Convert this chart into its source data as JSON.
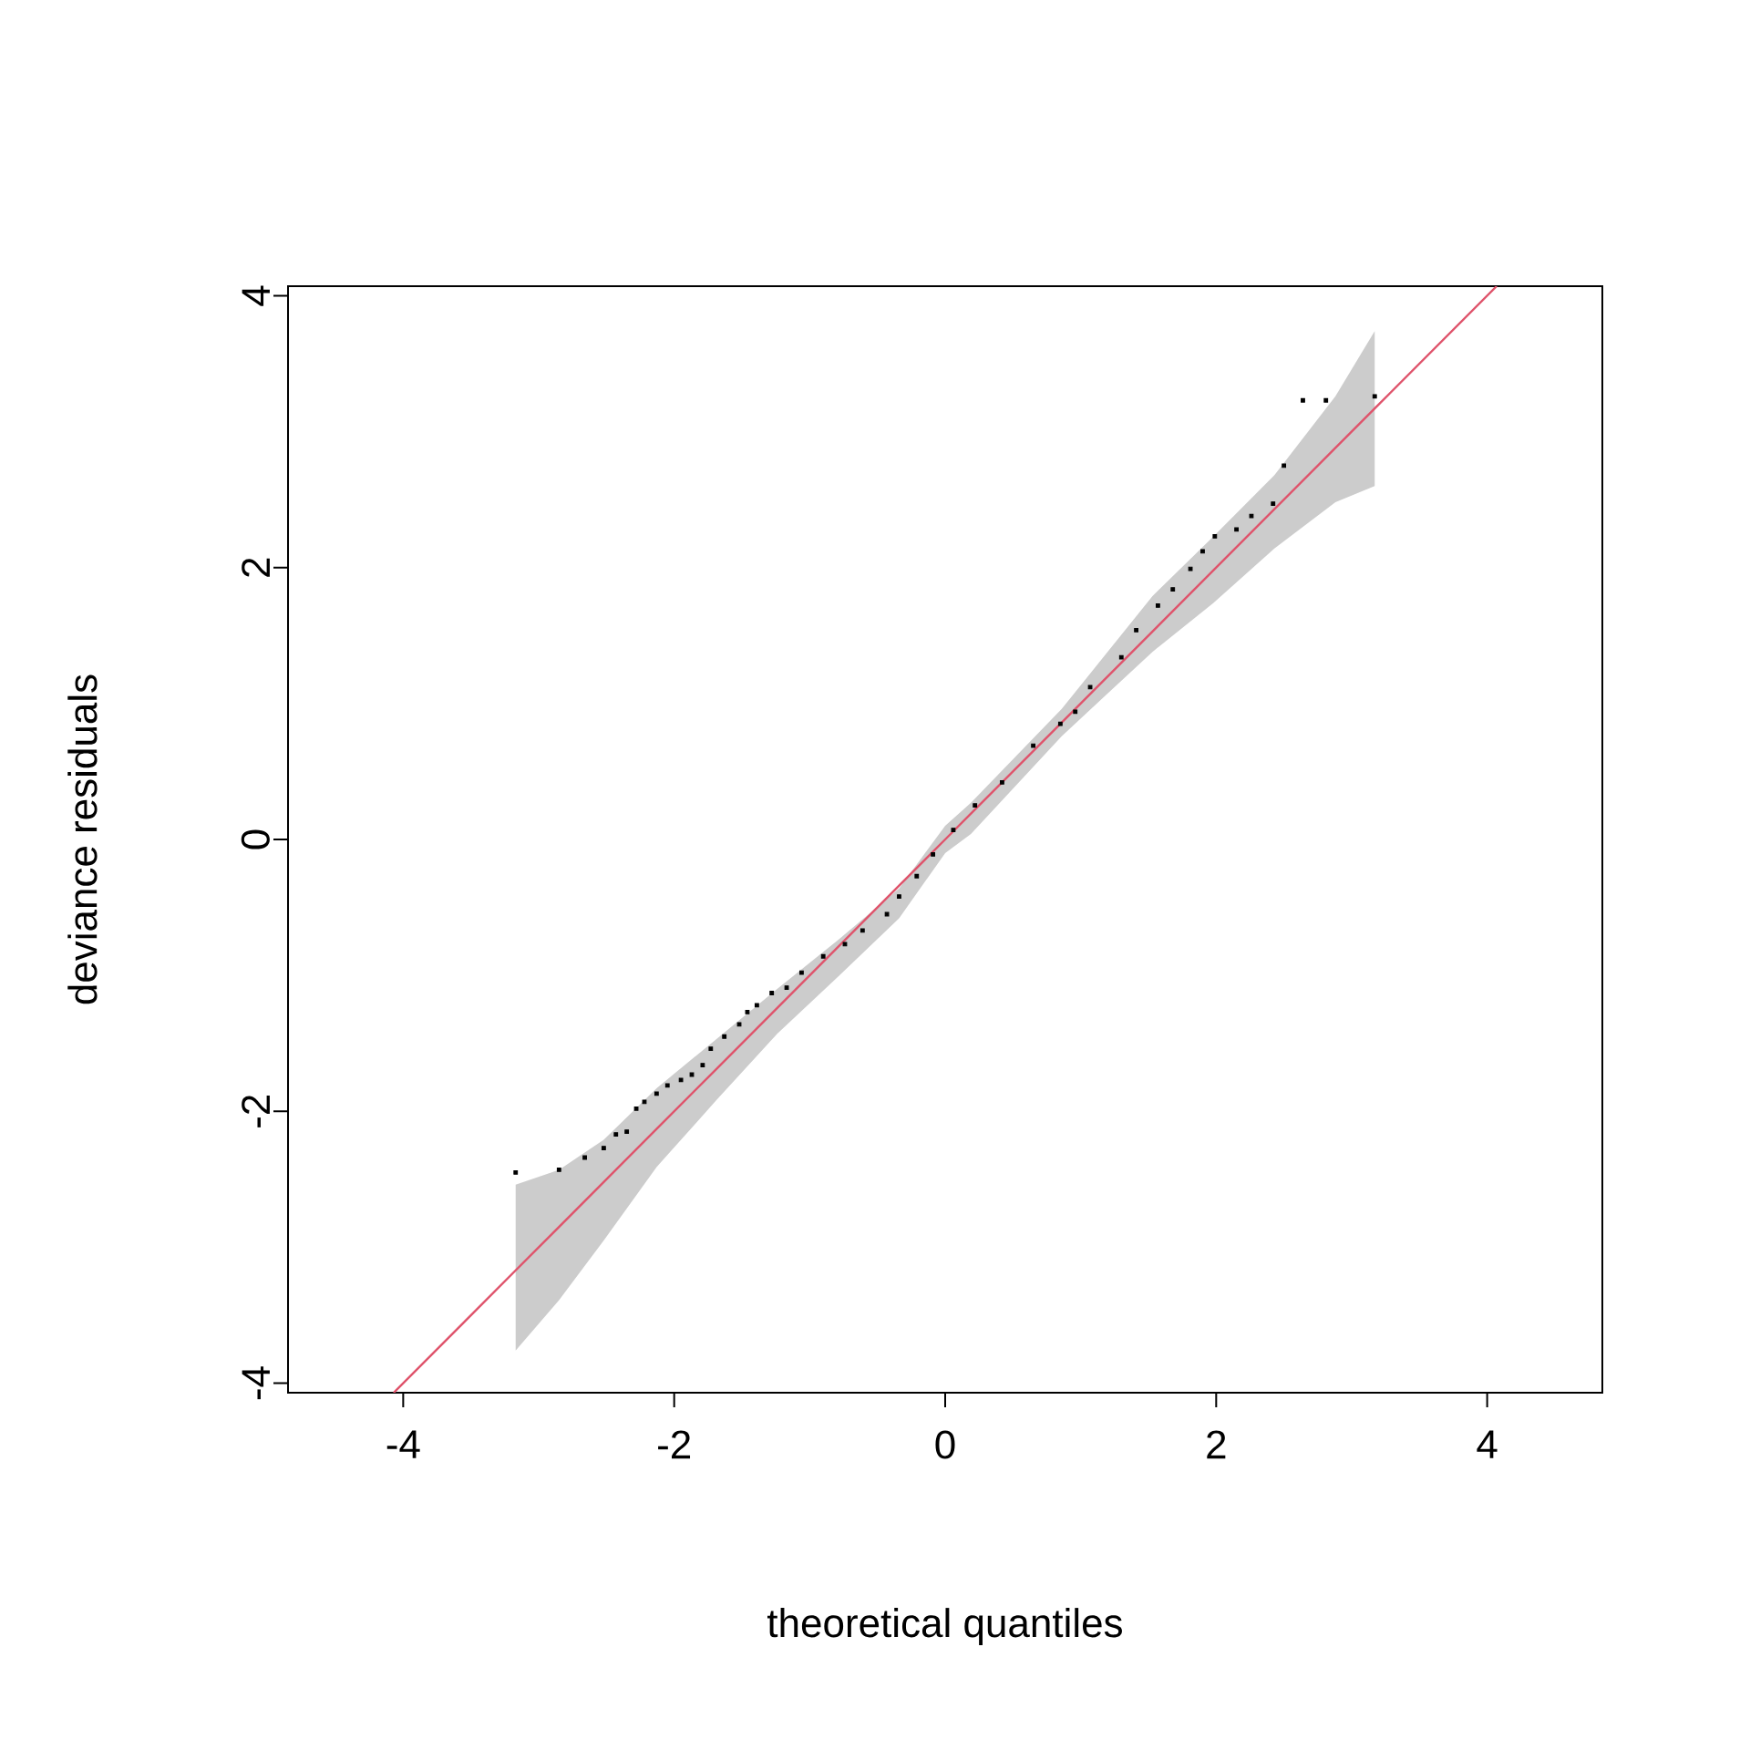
{
  "chart_data": {
    "type": "scatter",
    "xlabel": "theoretical quantiles",
    "ylabel": "deviance residuals",
    "xlim": [
      -4.85,
      4.85
    ],
    "ylim": [
      -4.07,
      4.07
    ],
    "xticks": [
      -4,
      -2,
      0,
      2,
      4
    ],
    "yticks": [
      -4,
      -2,
      0,
      2,
      4
    ],
    "series": [
      {
        "type": "line",
        "marker": "none",
        "color": "#df536b",
        "x": [
          -4.07,
          -3.17,
          -2.85,
          -2.52,
          -2.13,
          -1.69,
          -1.24,
          -0.79,
          -0.34,
          0,
          0.19,
          0.86,
          1.53,
          1.98,
          2.43,
          2.88,
          3.17,
          4.07
        ],
        "values": [
          -4.07,
          -3.17,
          -2.85,
          -2.52,
          -2.13,
          -1.69,
          -1.24,
          -0.79,
          -0.34,
          0,
          0.19,
          0.86,
          1.53,
          1.98,
          2.43,
          2.88,
          3.17,
          4.07
        ],
        "lower": [
          null,
          -3.76,
          -3.39,
          -2.95,
          -2.41,
          -1.92,
          -1.43,
          -1.01,
          -0.58,
          -0.1,
          0.04,
          0.76,
          1.38,
          1.74,
          2.14,
          2.48,
          2.6,
          null
        ],
        "upper": [
          null,
          -2.54,
          -2.43,
          -2.21,
          -1.83,
          -1.47,
          -1.1,
          -0.74,
          -0.36,
          0.1,
          0.27,
          0.96,
          1.79,
          2.23,
          2.68,
          3.26,
          3.74,
          null
        ]
      },
      {
        "marker": "square",
        "color": "#000000",
        "x": [
          -3.17,
          -2.85,
          -2.66,
          -2.52,
          -2.43,
          -2.35,
          -2.28,
          -2.22,
          -2.13,
          -2.05,
          -1.95,
          -1.87,
          -1.79,
          -1.73,
          -1.63,
          -1.52,
          -1.46,
          -1.39,
          -1.28,
          -1.17,
          -1.06,
          -0.9,
          -0.74,
          -0.61,
          -0.43,
          -0.34,
          -0.21,
          -0.09,
          0.06,
          0.22,
          0.42,
          0.65,
          0.85,
          0.96,
          1.07,
          1.3,
          1.41,
          1.57,
          1.68,
          1.81,
          1.9,
          1.99,
          2.15,
          2.26,
          2.42,
          2.5,
          2.64,
          2.81,
          3.17
        ],
        "values": [
          -2.45,
          -2.43,
          -2.34,
          -2.27,
          -2.17,
          -2.15,
          -1.98,
          -1.93,
          -1.87,
          -1.81,
          -1.77,
          -1.73,
          -1.66,
          -1.54,
          -1.45,
          -1.36,
          -1.27,
          -1.22,
          -1.13,
          -1.09,
          -0.98,
          -0.86,
          -0.77,
          -0.67,
          -0.55,
          -0.42,
          -0.27,
          -0.11,
          0.07,
          0.25,
          0.42,
          0.69,
          0.85,
          0.94,
          1.12,
          1.34,
          1.54,
          1.72,
          1.84,
          1.99,
          2.12,
          2.23,
          2.28,
          2.38,
          2.47,
          2.75,
          3.23,
          3.23,
          3.26
        ]
      }
    ]
  }
}
